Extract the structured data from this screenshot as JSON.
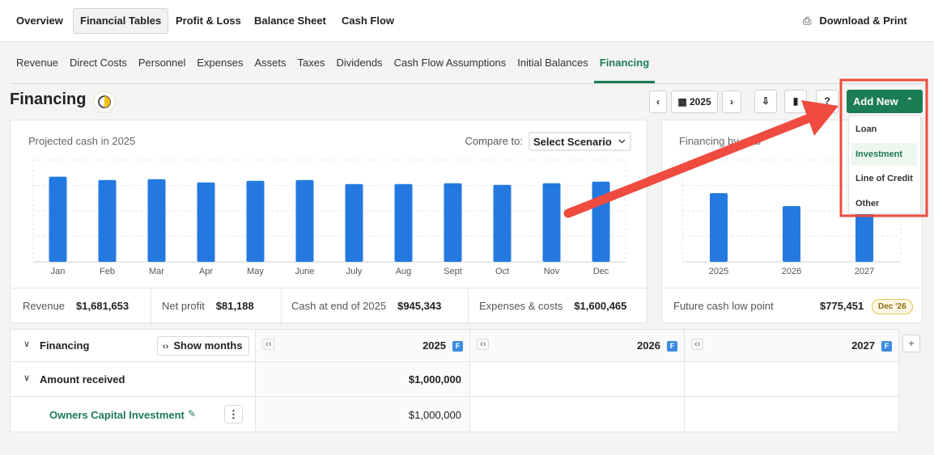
{
  "top_nav": {
    "tabs": [
      "Overview",
      "Financial Tables",
      "Profit & Loss",
      "Balance Sheet",
      "Cash Flow"
    ],
    "download": "Download & Print"
  },
  "sub_nav": {
    "tabs": [
      "Revenue",
      "Direct Costs",
      "Personnel",
      "Expenses",
      "Assets",
      "Taxes",
      "Dividends",
      "Cash Flow Assumptions",
      "Initial Balances",
      "Financing"
    ]
  },
  "page": {
    "title": "Financing"
  },
  "toolbar": {
    "year": "2025",
    "add_new": "Add New"
  },
  "dropdown": {
    "items": [
      "Loan",
      "Investment",
      "Line of Credit",
      "Other"
    ]
  },
  "chart_data": [
    {
      "type": "bar",
      "title": "Projected cash in 2025",
      "compare_label": "Compare to:",
      "compare_select": "Select Scenario",
      "categories": [
        "Jan",
        "Feb",
        "Mar",
        "Apr",
        "May",
        "June",
        "July",
        "Aug",
        "Sept",
        "Oct",
        "Nov",
        "Dec"
      ],
      "values": [
        1003000,
        964000,
        974000,
        936000,
        955000,
        964000,
        917000,
        917000,
        926000,
        907000,
        926000,
        945343
      ],
      "color": "#2479e0",
      "ylim": [
        0,
        1200000
      ]
    },
    {
      "type": "bar",
      "title": "Financing by year",
      "categories": [
        "2025",
        "2026",
        "2027"
      ],
      "values": [
        810000,
        657000,
        600000
      ],
      "color": "#2479e0",
      "ylim": [
        0,
        1200000
      ]
    }
  ],
  "summary": {
    "items": [
      {
        "label": "Revenue",
        "value": "$1,681,653"
      },
      {
        "label": "Net profit",
        "value": "$81,188"
      },
      {
        "label": "Cash at end of 2025",
        "value": "$945,343"
      },
      {
        "label": "Expenses & costs",
        "value": "$1,600,465"
      }
    ]
  },
  "future": {
    "label": "Future cash low point",
    "value": "$775,451",
    "badge": "Dec '26"
  },
  "table": {
    "title": "Financing",
    "toggle": "Show months",
    "years": [
      "2025",
      "2026",
      "2027"
    ],
    "badge": "F",
    "rows": [
      {
        "label": "Amount received",
        "values": [
          "$1,000,000"
        ]
      },
      {
        "label": "Owners Capital Investment",
        "values": [
          "$1,000,000"
        ]
      }
    ]
  }
}
